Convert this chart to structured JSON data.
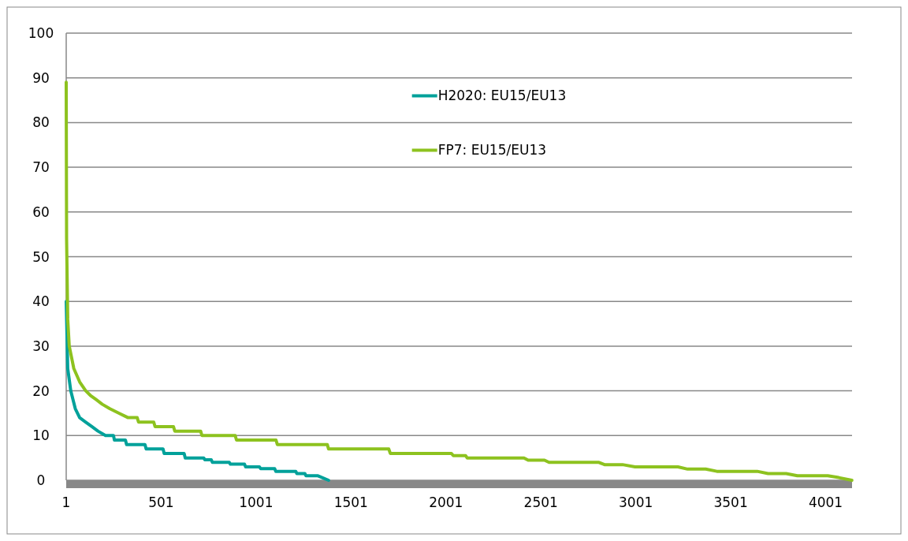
{
  "chart_data": {
    "type": "line",
    "xlim": [
      1,
      4140
    ],
    "xticks": [
      1,
      501,
      1001,
      1501,
      2001,
      2501,
      3001,
      3501,
      4001
    ],
    "ylim": [
      0,
      100
    ],
    "yticks": [
      0,
      10,
      20,
      30,
      40,
      50,
      60,
      70,
      80,
      90,
      100
    ],
    "grid": "y",
    "legend": "top",
    "marker": "none",
    "line_style": "solid",
    "series": [
      {
        "name": "H2020: EU15/EU13",
        "color": "#00a19a",
        "x": [
          1,
          9,
          25,
          49,
          72,
          104,
          136,
          168,
          208,
          250,
          255,
          313,
          319,
          416,
          422,
          511,
          517,
          622,
          628,
          725,
          731,
          765,
          771,
          860,
          866,
          940,
          946,
          1019,
          1025,
          1099,
          1105,
          1210,
          1216,
          1258,
          1264,
          1327,
          1383
        ],
        "values": [
          40,
          25,
          20,
          16,
          14,
          13,
          12,
          11,
          10,
          10,
          9,
          9,
          8,
          8,
          7,
          7,
          6,
          6,
          5,
          5,
          4.6,
          4.6,
          4,
          4,
          3.6,
          3.6,
          3,
          3,
          2.6,
          2.6,
          2,
          2,
          1.5,
          1.5,
          1,
          1,
          0
        ]
      },
      {
        "name": "FP7: EU15/EU13",
        "color": "#8dc21f",
        "x": [
          1,
          3,
          9,
          17,
          41,
          72,
          104,
          128,
          160,
          191,
          231,
          279,
          327,
          375,
          382,
          462,
          469,
          566,
          573,
          709,
          716,
          891,
          898,
          1106,
          1113,
          1376,
          1383,
          1700,
          1708,
          2030,
          2040,
          2105,
          2113,
          2412,
          2434,
          2520,
          2544,
          2807,
          2836,
          2931,
          2997,
          3223,
          3274,
          3369,
          3428,
          3640,
          3698,
          3793,
          3852,
          4012,
          4070,
          4139
        ],
        "values": [
          89,
          54,
          36,
          30,
          25,
          22,
          20,
          19,
          18,
          17,
          16,
          15,
          14,
          14,
          13,
          13,
          12,
          12,
          11,
          11,
          10,
          10,
          9,
          9,
          8,
          8,
          7,
          7,
          6,
          6,
          5.5,
          5.5,
          5,
          5,
          4.5,
          4.5,
          4,
          4,
          3.5,
          3.5,
          3,
          3,
          2.5,
          2.5,
          2,
          2,
          1.5,
          1.5,
          1,
          1,
          0.6,
          0
        ]
      }
    ]
  }
}
